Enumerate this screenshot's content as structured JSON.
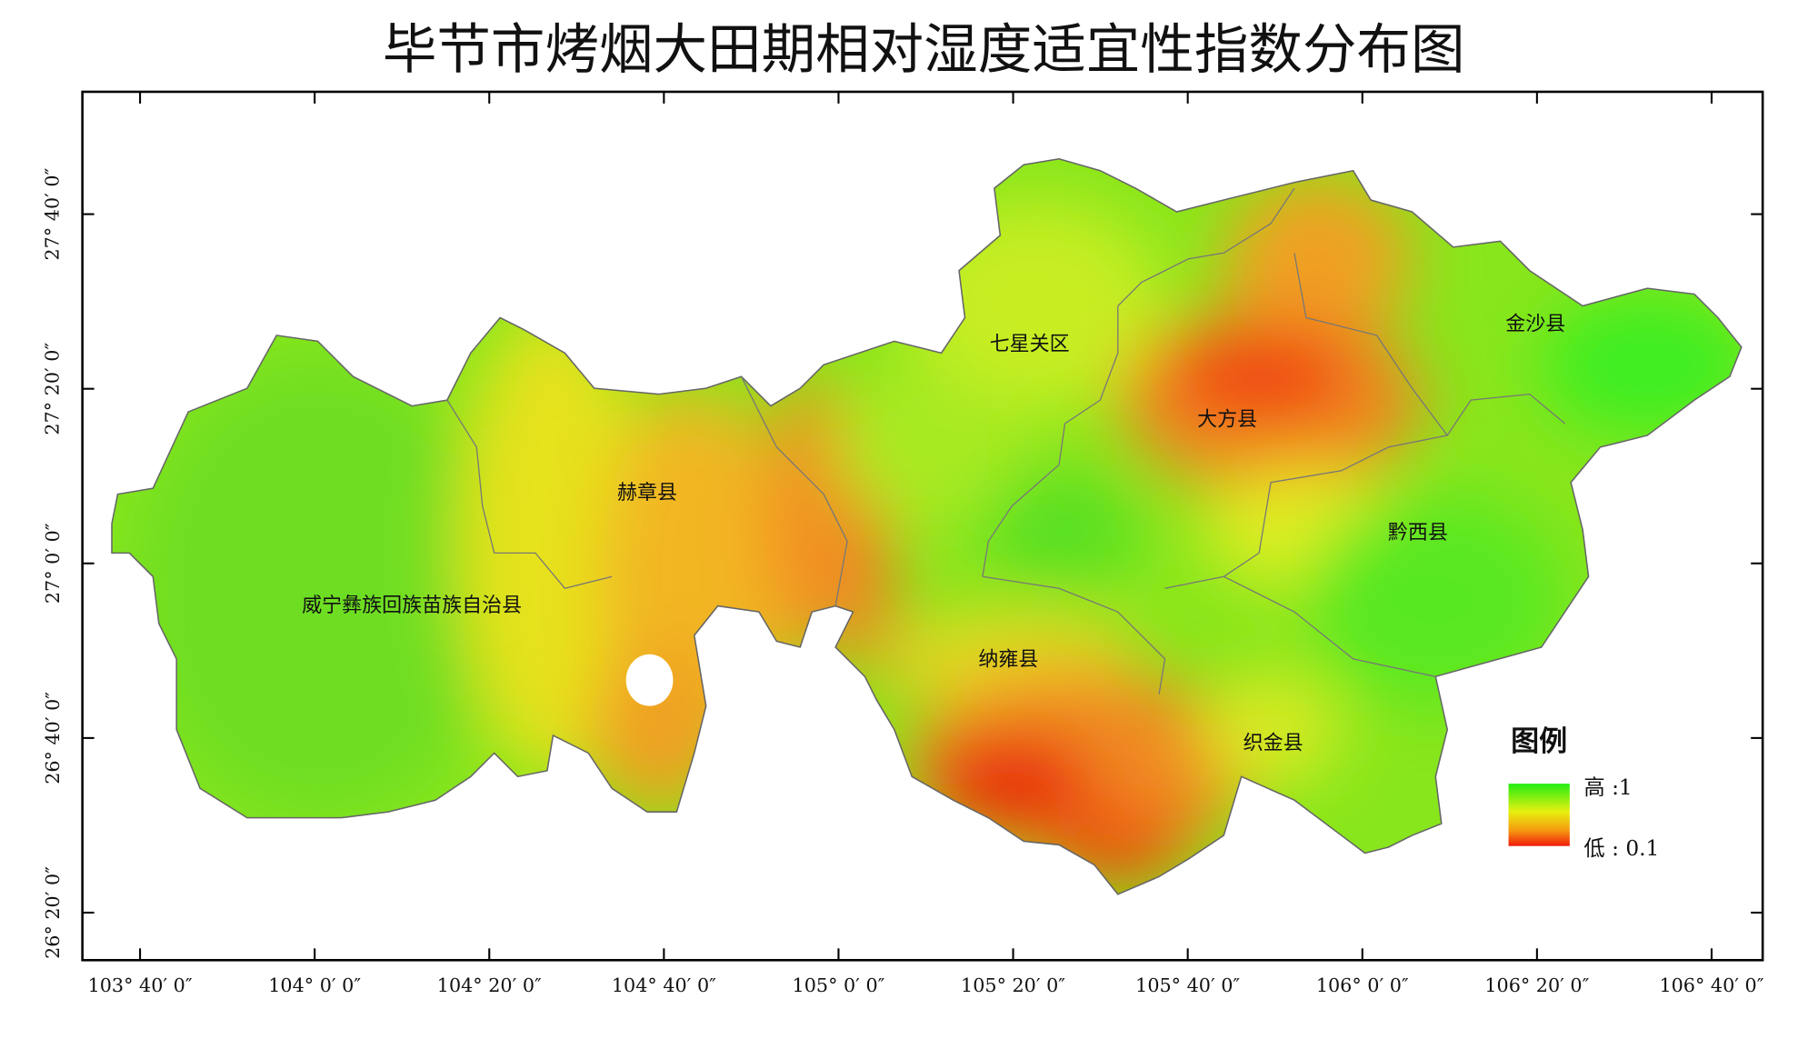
{
  "title": "毕节市烤烟大田期相对湿度适宜性指数分布图",
  "counties": [
    {
      "name": "七星关区"
    },
    {
      "name": "大方县"
    },
    {
      "name": "金沙县"
    },
    {
      "name": "赫章县"
    },
    {
      "name": "黔西县"
    },
    {
      "name": "威宁彝族回族苗族自治县"
    },
    {
      "name": "纳雍县"
    },
    {
      "name": "织金县"
    }
  ],
  "legend": {
    "title": "图例",
    "high": "高 :1",
    "low": "低 : 0.1"
  },
  "axes": {
    "longitude": [
      "103° 40′ 0″",
      "104° 0′ 0″",
      "104° 20′ 0″",
      "104° 40′ 0″",
      "105° 0′ 0″",
      "105° 20′ 0″",
      "105° 40′ 0″",
      "106° 0′ 0″",
      "106° 20′ 0″",
      "106° 40′ 0″"
    ],
    "latitude": [
      "27° 40′ 0″",
      "27° 20′ 0″",
      "27° 0′ 0″",
      "26° 40′ 0″",
      "26° 20′ 0″"
    ]
  }
}
